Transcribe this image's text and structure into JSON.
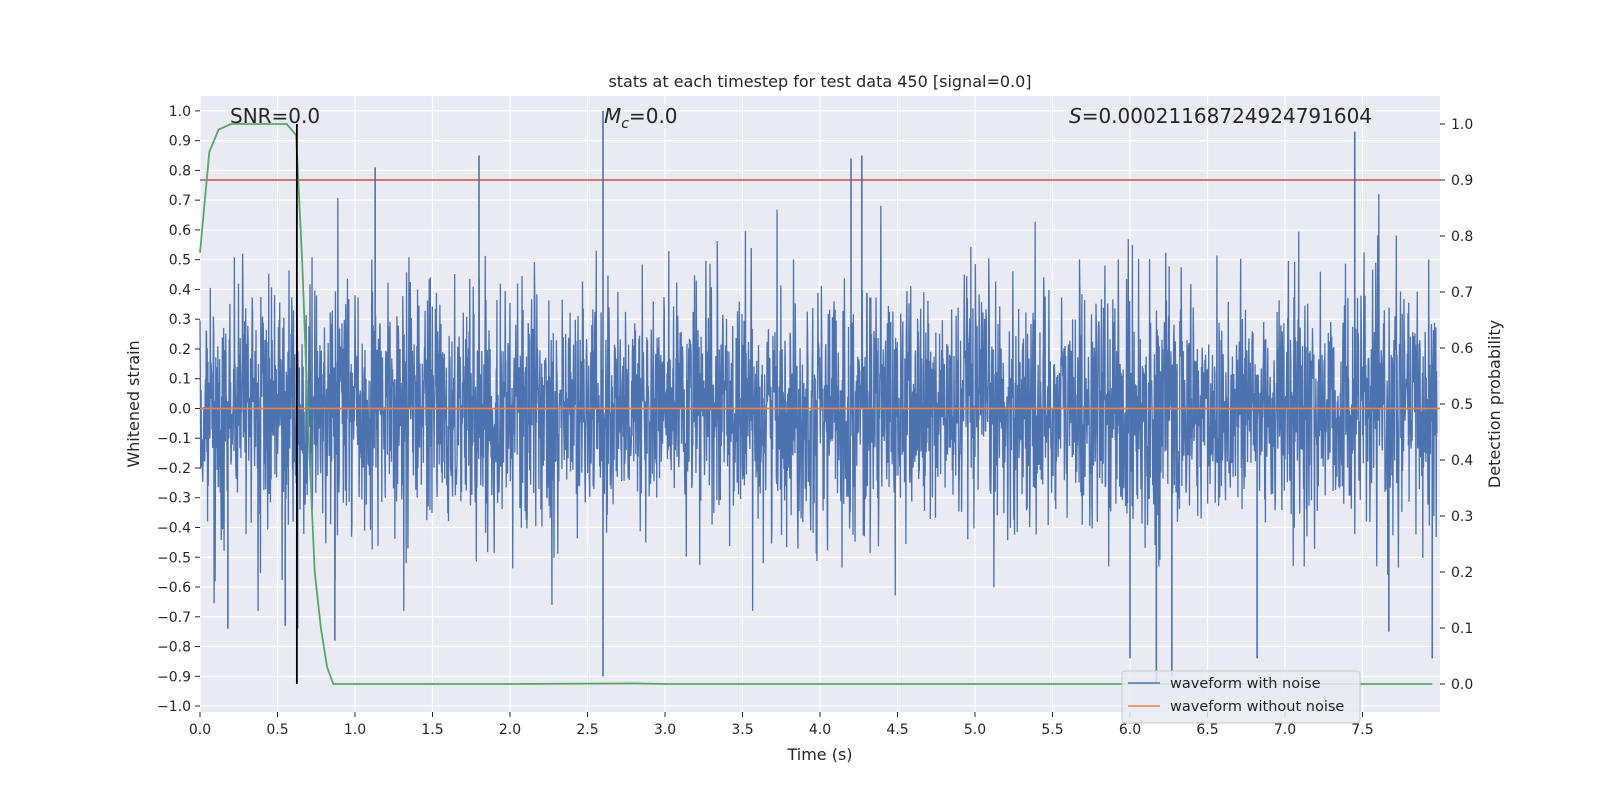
{
  "chart_data": {
    "type": "line",
    "title": "stats at each timestep for test data 450 [signal=0.0]",
    "xlabel": "Time (s)",
    "ylabel": "Whitened strain",
    "ylabel_right": "Detection probability",
    "xlim": [
      0.0,
      8.0
    ],
    "ylim": [
      -1.02,
      1.05
    ],
    "ylim_right": [
      -0.05,
      1.05
    ],
    "x_ticks": [
      "0.0",
      "0.5",
      "1.0",
      "1.5",
      "2.0",
      "2.5",
      "3.0",
      "3.5",
      "4.0",
      "4.5",
      "5.0",
      "5.5",
      "6.0",
      "6.5",
      "7.0",
      "7.5"
    ],
    "x_tick_values": [
      0.0,
      0.5,
      1.0,
      1.5,
      2.0,
      2.5,
      3.0,
      3.5,
      4.0,
      4.5,
      5.0,
      5.5,
      6.0,
      6.5,
      7.0,
      7.5
    ],
    "y_ticks": [
      "1.0",
      "0.9",
      "0.8",
      "0.7",
      "0.6",
      "0.5",
      "0.4",
      "0.3",
      "0.2",
      "0.1",
      "0.0",
      "−0.1",
      "−0.2",
      "−0.3",
      "−0.4",
      "−0.5",
      "−0.6",
      "−0.7",
      "−0.8",
      "−0.9",
      "−1.0"
    ],
    "y_tick_values": [
      1.0,
      0.9,
      0.8,
      0.7,
      0.6,
      0.5,
      0.4,
      0.3,
      0.2,
      0.1,
      0.0,
      -0.1,
      -0.2,
      -0.3,
      -0.4,
      -0.5,
      -0.6,
      -0.7,
      -0.8,
      -0.9,
      -1.0
    ],
    "y_ticks_right": [
      "1.0",
      "0.9",
      "0.8",
      "0.7",
      "0.6",
      "0.5",
      "0.4",
      "0.3",
      "0.2",
      "0.1",
      "0.0"
    ],
    "y_tick_values_right": [
      1.0,
      0.9,
      0.8,
      0.7,
      0.6,
      0.5,
      0.4,
      0.3,
      0.2,
      0.1,
      0.0
    ],
    "annotations": {
      "snr": "SNR=0.0",
      "mc_symbol": "M",
      "mc_sub": "c",
      "mc_value": "=0.0",
      "s_symbol": "S",
      "s_value": "=0.00021168724924791604"
    },
    "legend": {
      "position": "lower-right",
      "entries": [
        "waveform with noise",
        "waveform without noise"
      ]
    },
    "series": [
      {
        "name": "waveform with noise",
        "axis": "left",
        "color": "#4c72b0",
        "description_note": "dense noise, amplitude mostly within ~[-0.45, 0.45], spikes up to ~1.0 and down to ~-0.9",
        "peaks": [
          {
            "x": 0.18,
            "y": -0.74
          },
          {
            "x": 0.55,
            "y": -0.73
          },
          {
            "x": 0.63,
            "y": -0.74
          },
          {
            "x": 0.87,
            "y": -0.78
          },
          {
            "x": 1.13,
            "y": 0.81
          },
          {
            "x": 1.8,
            "y": 0.85
          },
          {
            "x": 2.6,
            "y": 1.0
          },
          {
            "x": 2.6,
            "y": -0.9
          },
          {
            "x": 4.2,
            "y": 0.84
          },
          {
            "x": 4.27,
            "y": 0.85
          },
          {
            "x": 6.0,
            "y": -0.84
          },
          {
            "x": 6.17,
            "y": -0.92
          },
          {
            "x": 6.27,
            "y": -0.9
          },
          {
            "x": 6.82,
            "y": -0.84
          },
          {
            "x": 7.45,
            "y": 0.93
          },
          {
            "x": 7.67,
            "y": -0.75
          },
          {
            "x": 7.95,
            "y": -0.84
          }
        ]
      },
      {
        "name": "waveform without noise",
        "axis": "left",
        "color": "#dd8452",
        "x": [
          0.0,
          8.0
        ],
        "y": [
          0.0,
          0.0
        ]
      },
      {
        "axis": "right",
        "color": "#55a868",
        "x": [
          0.0,
          0.06,
          0.12,
          0.2,
          0.3,
          0.4,
          0.5,
          0.56,
          0.62,
          0.66,
          0.7,
          0.74,
          0.78,
          0.82,
          0.86,
          1.0,
          2.0,
          2.8,
          3.0,
          4.0,
          5.0,
          6.0,
          7.0,
          7.95
        ],
        "y": [
          0.77,
          0.95,
          0.99,
          1.0,
          1.0,
          1.0,
          1.0,
          1.0,
          0.98,
          0.75,
          0.45,
          0.2,
          0.1,
          0.03,
          0.0,
          0.0,
          0.0,
          0.001,
          0.0,
          0.0,
          0.0,
          0.0,
          0.0,
          0.0
        ]
      }
    ],
    "threshold": {
      "axis": "right",
      "y": 0.9,
      "color": "#c44e52"
    },
    "marker_line": {
      "x": 0.625,
      "y_top": 1.0,
      "y_bottom": 0.0,
      "color": "#000000"
    },
    "grid": true
  }
}
